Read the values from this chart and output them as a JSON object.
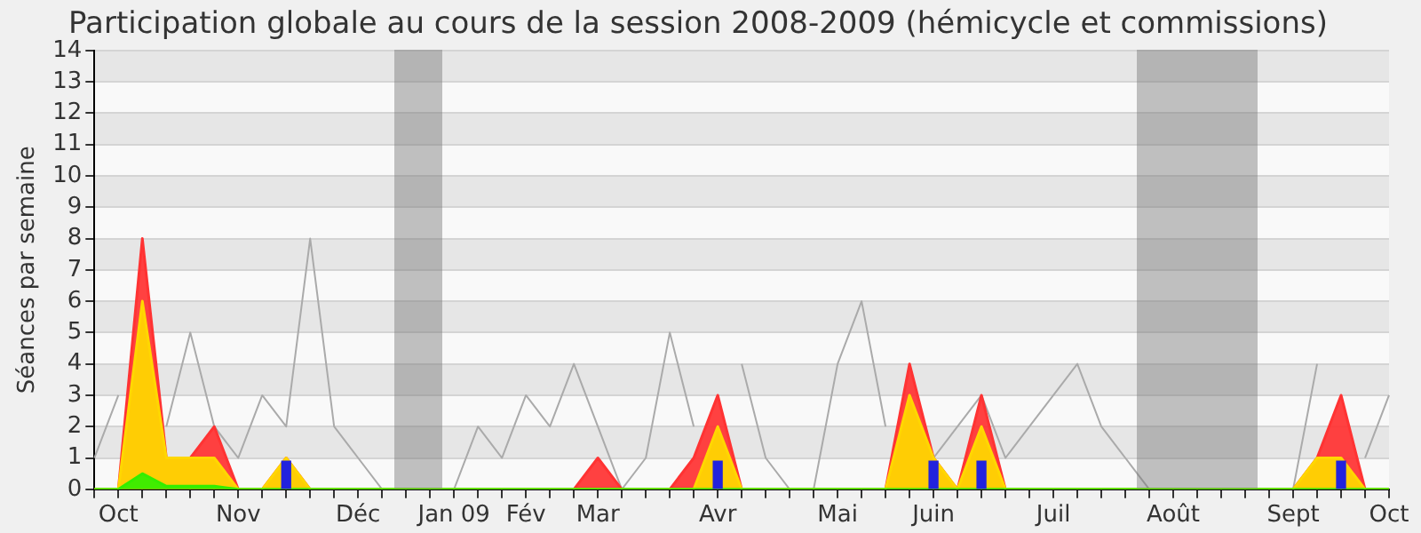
{
  "chart_data": {
    "type": "area",
    "title": "Participation globale au cours de la session 2008-2009 (hémicycle et commissions)",
    "ylabel": "Séances par semaine",
    "categories": [
      null,
      "Oct",
      null,
      null,
      null,
      null,
      "Nov",
      null,
      null,
      null,
      null,
      "Déc",
      null,
      null,
      null,
      "Jan 09",
      null,
      null,
      "Fév",
      null,
      null,
      "Mar",
      null,
      null,
      null,
      null,
      "Avr",
      null,
      null,
      null,
      null,
      "Mai",
      null,
      null,
      null,
      "Juin",
      null,
      null,
      null,
      null,
      "Juil",
      null,
      null,
      null,
      null,
      "Août",
      null,
      null,
      null,
      null,
      "Sept",
      null,
      null,
      null,
      "Oct"
    ],
    "series": [
      {
        "type": "line",
        "color": "#aaaaaa",
        "values": [
          1,
          3,
          null,
          2,
          5,
          2,
          1,
          3,
          2,
          8,
          2,
          1,
          0,
          0,
          0,
          0,
          2,
          1,
          3,
          2,
          4,
          2,
          0,
          1,
          5,
          2,
          null,
          4,
          1,
          0,
          0,
          4,
          6,
          2,
          null,
          1,
          2,
          3,
          1,
          2,
          3,
          4,
          2,
          1,
          0,
          0,
          0,
          0,
          0,
          0,
          0,
          4,
          null,
          1,
          3
        ]
      },
      {
        "color": "#ff3333",
        "values": [
          0,
          0,
          8,
          1,
          1,
          2,
          0,
          0,
          1,
          0,
          0,
          0,
          0,
          0,
          0,
          0,
          0,
          0,
          0,
          0,
          0,
          1,
          0,
          0,
          0,
          1,
          3,
          0,
          0,
          0,
          0,
          0,
          0,
          0,
          4,
          1,
          0,
          3,
          0,
          0,
          0,
          0,
          0,
          0,
          0,
          0,
          0,
          0,
          0,
          0,
          0,
          1,
          3,
          0,
          0
        ]
      },
      {
        "color": "#ffd700",
        "values": [
          0,
          0,
          6,
          1,
          1,
          1,
          0,
          0,
          1,
          0,
          0,
          0,
          0,
          0,
          0,
          0,
          0,
          0,
          0,
          0,
          0,
          0,
          0,
          0,
          0,
          0,
          2,
          0,
          0,
          0,
          0,
          0,
          0,
          0,
          3,
          1,
          0,
          2,
          0,
          0,
          0,
          0,
          0,
          0,
          0,
          0,
          0,
          0,
          0,
          0,
          0,
          1,
          1,
          0,
          0
        ]
      },
      {
        "color": "#33ee00",
        "values": [
          0,
          0,
          0.5,
          0.1,
          0.1,
          0.1,
          0,
          0,
          0,
          0,
          0,
          0,
          0,
          0,
          0,
          0,
          0,
          0,
          0,
          0,
          0,
          0,
          0,
          0,
          0,
          0,
          0,
          0,
          0,
          0,
          0,
          0,
          0,
          0,
          0,
          0,
          0,
          0,
          0,
          0,
          0,
          0,
          0,
          0,
          0,
          0,
          0,
          0,
          0,
          0,
          0,
          0,
          0,
          0,
          0
        ]
      },
      {
        "type": "bar",
        "color": "#2222dd",
        "values": [
          null,
          null,
          null,
          null,
          null,
          null,
          null,
          null,
          0.9,
          null,
          null,
          null,
          null,
          null,
          null,
          null,
          null,
          null,
          null,
          null,
          null,
          null,
          null,
          null,
          null,
          null,
          0.9,
          null,
          null,
          null,
          null,
          null,
          null,
          null,
          null,
          0.9,
          null,
          0.9,
          null,
          null,
          null,
          null,
          null,
          null,
          null,
          null,
          null,
          null,
          null,
          null,
          null,
          null,
          0.9,
          null,
          null
        ]
      }
    ],
    "ylim": [
      0,
      14
    ],
    "yticks": [
      0,
      1,
      2,
      3,
      4,
      5,
      6,
      7,
      8,
      9,
      10,
      11,
      12,
      13,
      14
    ],
    "grid": "y",
    "legend": false,
    "marker": "none",
    "line_style": "solid"
  }
}
